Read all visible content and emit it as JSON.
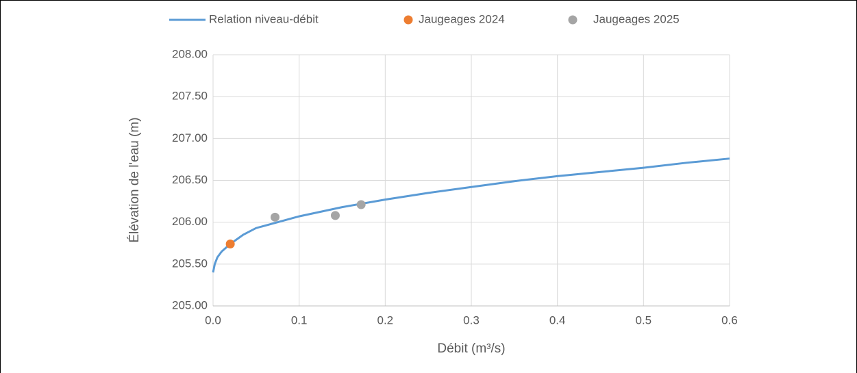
{
  "chart_data": {
    "type": "scatter",
    "x_label": "Débit (m³/s)",
    "y_label": "Élévation de l'eau (m)",
    "xlim": [
      0,
      0.6
    ],
    "ylim": [
      205,
      208
    ],
    "xticks": [
      {
        "value": 0,
        "label": "0.0"
      },
      0.1,
      0.2,
      0.3,
      0.4,
      0.5,
      0.6
    ],
    "yticks": [
      {
        "value": 205,
        "label": "205.00"
      },
      {
        "value": 205.5,
        "label": "205.50"
      },
      {
        "value": 206,
        "label": "206.00"
      },
      {
        "value": 206.5,
        "label": "206.50"
      },
      {
        "value": 207,
        "label": "207.00"
      },
      {
        "value": 207.5,
        "label": "207.50"
      },
      {
        "value": 208,
        "label": "208.00"
      }
    ],
    "grid": true,
    "legend": "top",
    "series": [
      {
        "name": "Relation niveau-débit",
        "color": "#5b9bd5",
        "mode": "line",
        "x": [
          0,
          0.002,
          0.005,
          0.01,
          0.02,
          0.035,
          0.05,
          0.075,
          0.1,
          0.15,
          0.2,
          0.25,
          0.3,
          0.35,
          0.4,
          0.45,
          0.5,
          0.55,
          0.6
        ],
        "values": [
          205.4,
          205.5,
          205.58,
          205.65,
          205.74,
          205.85,
          205.93,
          206.0,
          206.07,
          206.18,
          206.27,
          206.35,
          206.42,
          206.49,
          206.55,
          206.6,
          206.65,
          206.71,
          206.76
        ]
      },
      {
        "name": "Jaugeages 2024",
        "color": "#ed7d31",
        "mode": "markers",
        "x": [
          0.02
        ],
        "values": [
          205.74
        ]
      },
      {
        "name": "Jaugeages 2025",
        "color": "#a5a5a5",
        "mode": "markers",
        "x": [
          0.072,
          0.142,
          0.172
        ],
        "values": [
          206.06,
          206.08,
          206.21
        ]
      }
    ]
  }
}
